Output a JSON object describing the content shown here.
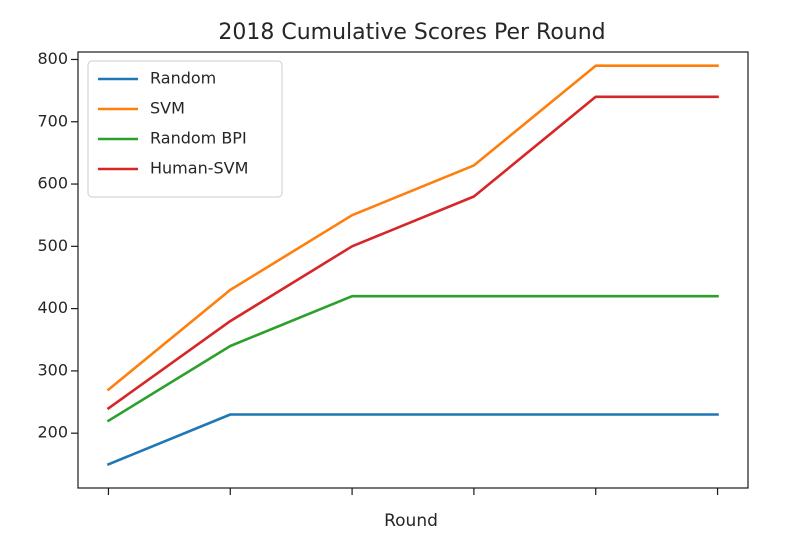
{
  "chart_data": {
    "type": "line",
    "title": "2018 Cumulative Scores Per Round",
    "xlabel": "Round",
    "ylabel": "",
    "x": [
      1,
      2,
      3,
      4,
      5,
      6
    ],
    "xlim": [
      0.75,
      6.25
    ],
    "ylim": [
      112,
      812
    ],
    "yticks": [
      200,
      300,
      400,
      500,
      600,
      700,
      800
    ],
    "show_x_tick_labels": false,
    "grid": false,
    "legend_position": "top-left",
    "series": [
      {
        "name": "Random",
        "color": "#1f77b4",
        "values": [
          150,
          230,
          230,
          230,
          230,
          230
        ]
      },
      {
        "name": "SVM",
        "color": "#ff7f0e",
        "values": [
          270,
          430,
          550,
          630,
          790,
          790
        ]
      },
      {
        "name": "Random BPI",
        "color": "#2ca02c",
        "values": [
          220,
          340,
          420,
          420,
          420,
          420
        ]
      },
      {
        "name": "Human-SVM",
        "color": "#d62728",
        "values": [
          240,
          380,
          500,
          580,
          740,
          740
        ]
      }
    ]
  }
}
